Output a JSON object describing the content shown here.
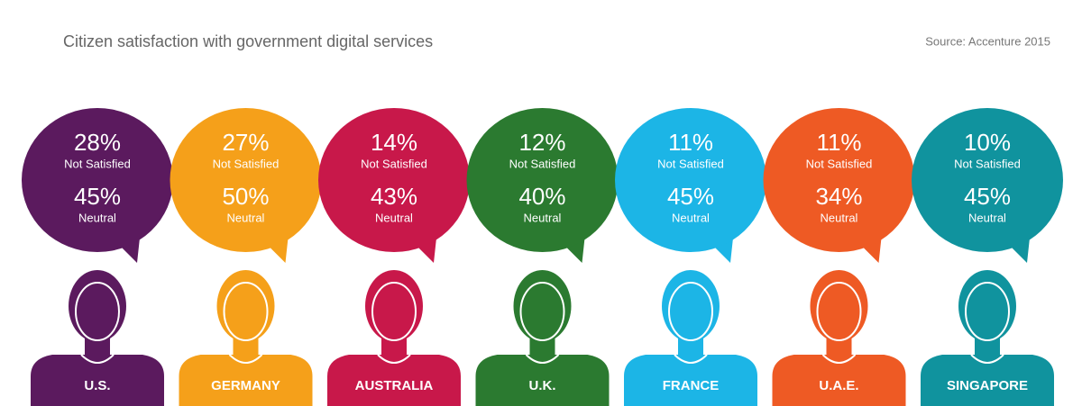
{
  "chart_data": {
    "type": "pictogram",
    "title": "Citizen satisfaction with government digital services",
    "source": "Source: Accenture 2015",
    "categories": [
      "U.S.",
      "GERMANY",
      "AUSTRALIA",
      "U.K.",
      "FRANCE",
      "U.A.E.",
      "SINGAPORE"
    ],
    "colors": [
      "#5b1a5e",
      "#f5a01a",
      "#c8184a",
      "#2b7a30",
      "#1cb5e6",
      "#ee5a24",
      "#10939e"
    ],
    "series": [
      {
        "name": "Not Satisfied",
        "values": [
          28,
          27,
          14,
          12,
          11,
          11,
          10
        ],
        "value_labels": [
          "28%",
          "27%",
          "14%",
          "12%",
          "11%",
          "11%",
          "10%"
        ]
      },
      {
        "name": "Neutral",
        "values": [
          45,
          50,
          43,
          40,
          45,
          34,
          45
        ],
        "value_labels": [
          "45%",
          "50%",
          "43%",
          "40%",
          "45%",
          "34%",
          "45%"
        ]
      }
    ]
  }
}
